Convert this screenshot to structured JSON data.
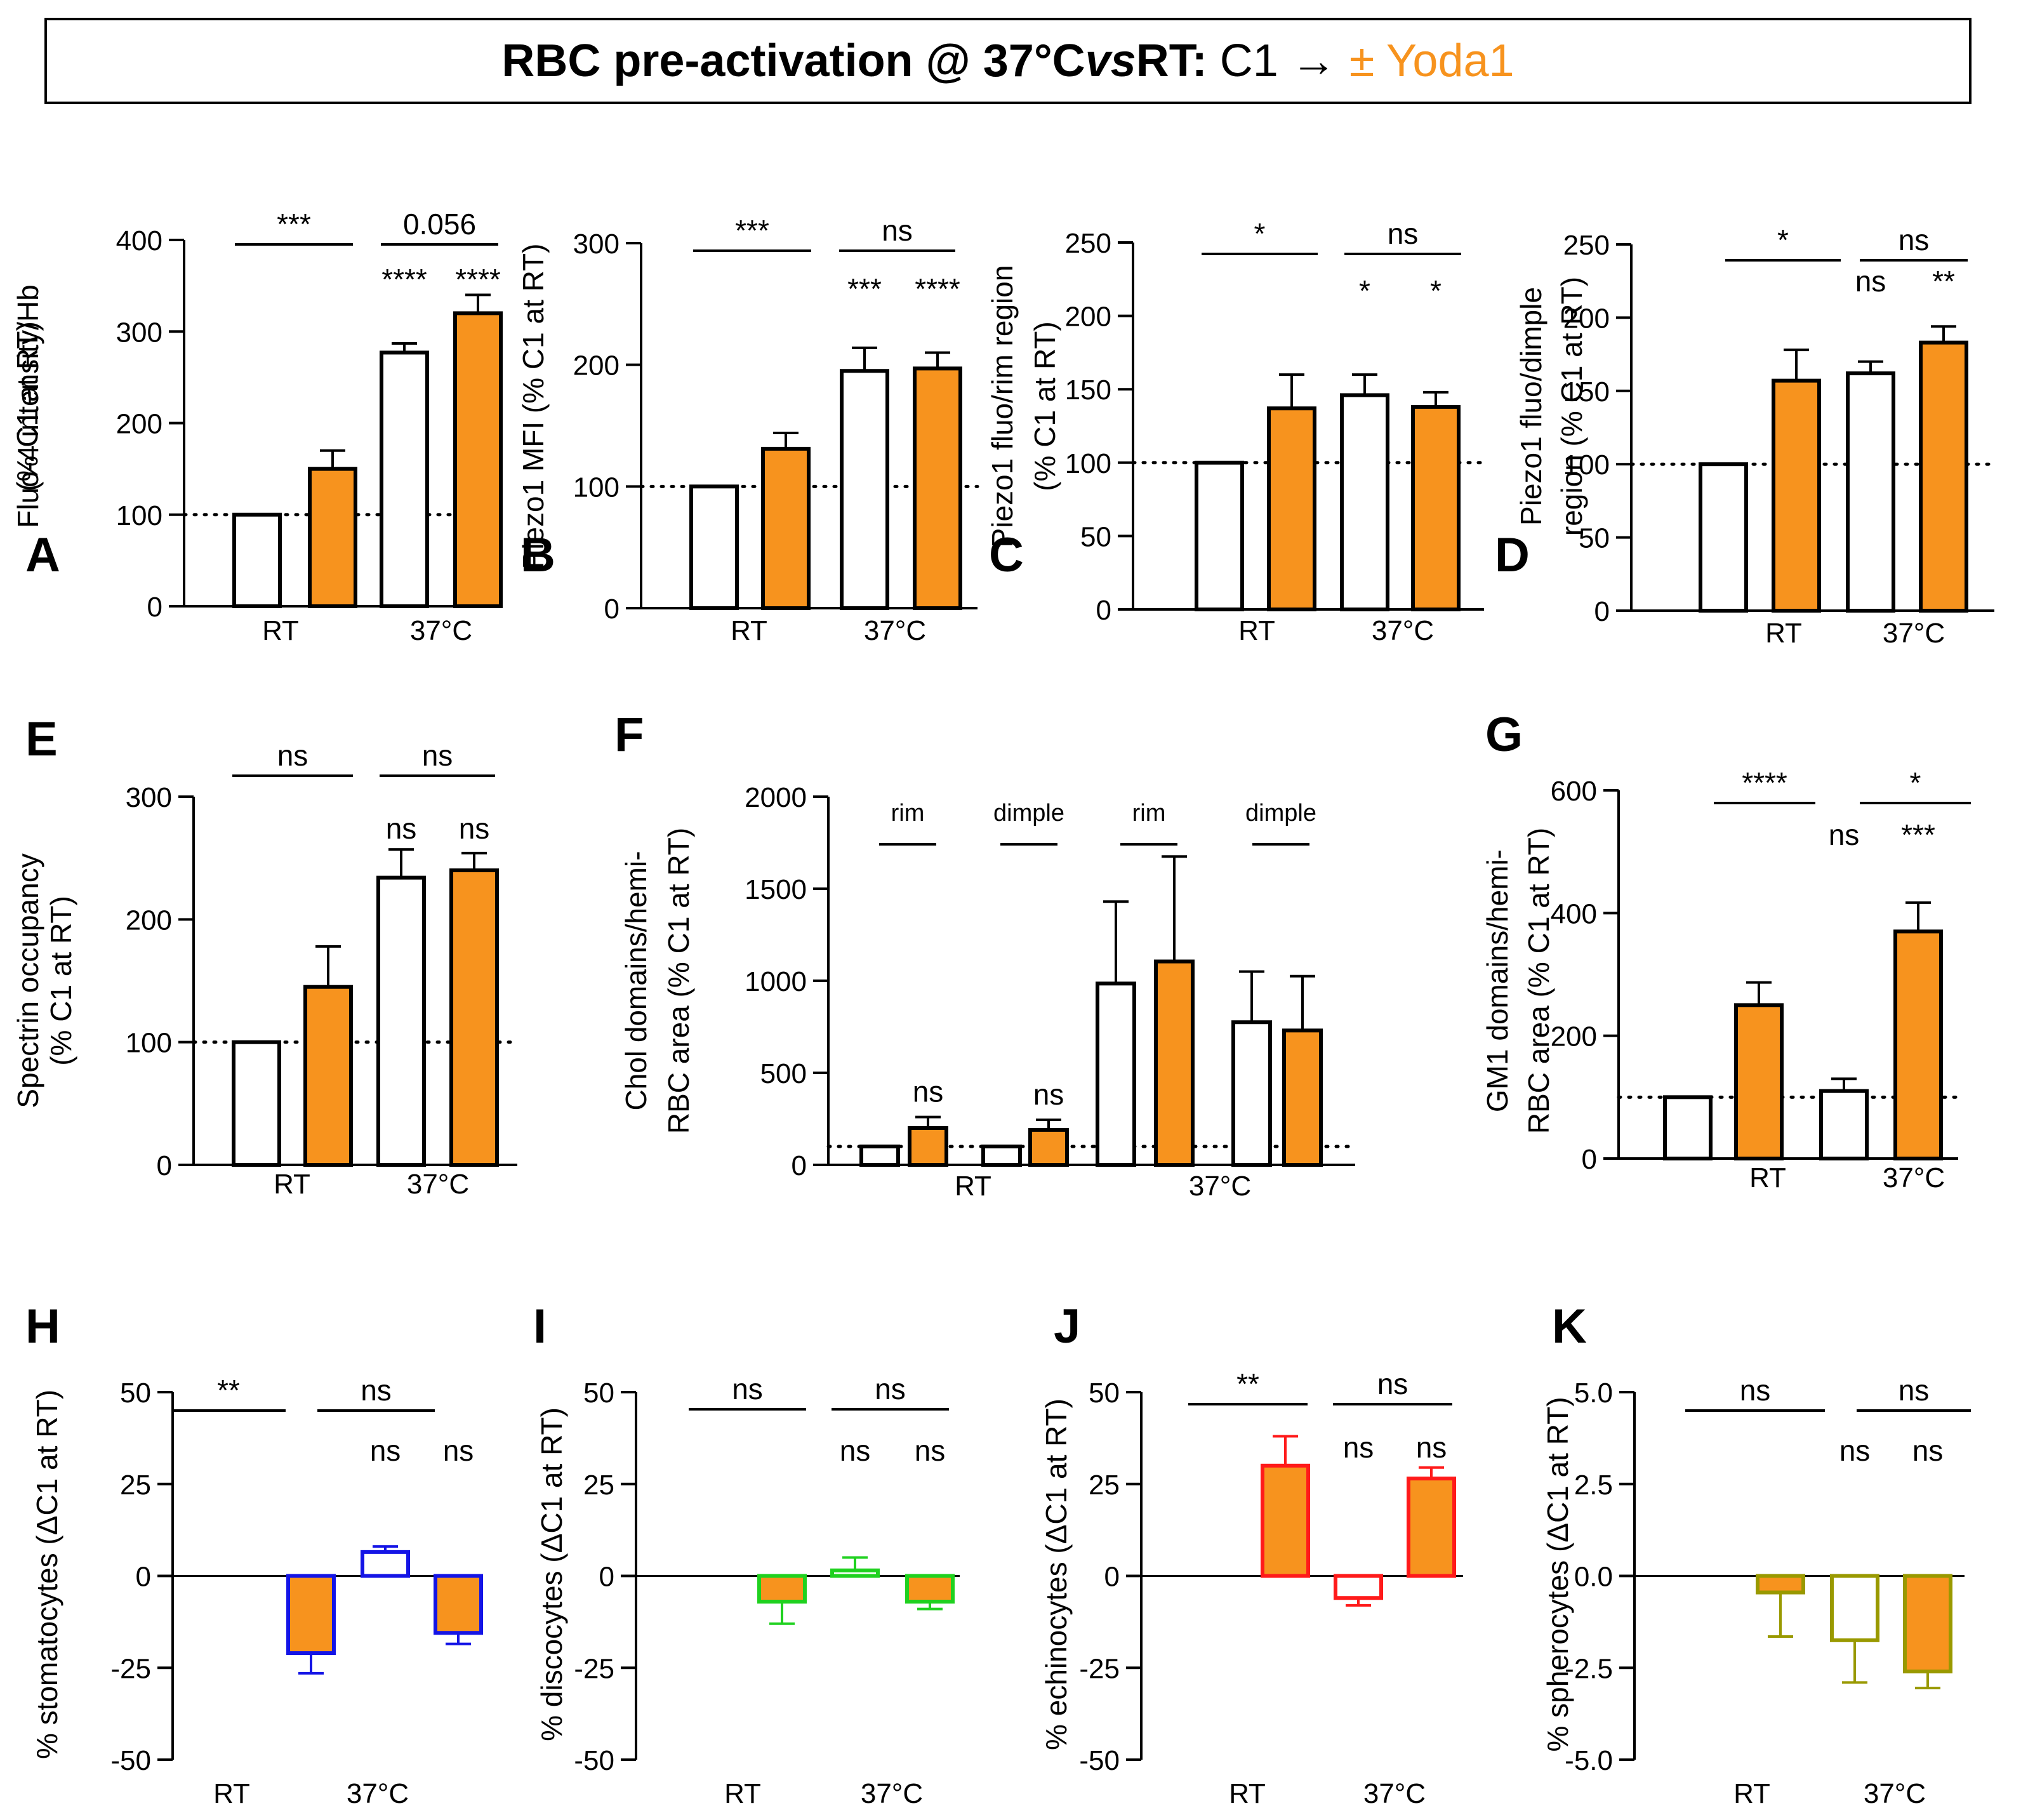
{
  "figure_title": {
    "bold_part1": "RBC pre-activation @ 37°C ",
    "italic_vs": "vs",
    "bold_part2": " RT:",
    "normal_part": " C1 → ",
    "highlight_part": "± Yoda1",
    "highlight_color": "#f7931e"
  },
  "colors": {
    "yoda_fill": "#f7931e",
    "control_fill": "#ffffff",
    "stomatocyte": "#1414e6",
    "discocyte": "#1fd11f",
    "echinocyte": "#ff1a1a",
    "spherocyte": "#999900"
  },
  "chart_data": [
    {
      "panel": "A",
      "type": "bar",
      "ylabel": [
        "Fluo-4 intensity/Hb",
        "(% C1 at RT)"
      ],
      "ylim": [
        0,
        400
      ],
      "yticks": [
        "0",
        "100",
        "200",
        "300",
        "400"
      ],
      "categories": [
        "RT",
        "37°C"
      ],
      "reference": 100,
      "bars": [
        {
          "group": "RT",
          "condition": "C1",
          "value": 100,
          "err": 0
        },
        {
          "group": "RT",
          "condition": "C1 + Yoda1",
          "value": 150,
          "err": 20
        },
        {
          "group": "37°C",
          "condition": "C1",
          "value": 277,
          "err": 10
        },
        {
          "group": "37°C",
          "condition": "C1 + Yoda1",
          "value": 320,
          "err": 20
        }
      ],
      "bar_sig": [
        "",
        "",
        "****",
        "****"
      ],
      "brackets": [
        "***",
        "0.056"
      ]
    },
    {
      "panel": "B",
      "type": "bar",
      "ylabel": [
        "Piezo1 MFI (% C1 at RT)"
      ],
      "ylim": [
        0,
        300
      ],
      "yticks": [
        "0",
        "100",
        "200",
        "300"
      ],
      "categories": [
        "RT",
        "37°C"
      ],
      "reference": 100,
      "bars": [
        {
          "group": "RT",
          "condition": "C1",
          "value": 100,
          "err": 0
        },
        {
          "group": "RT",
          "condition": "C1 + Yoda1",
          "value": 131,
          "err": 13
        },
        {
          "group": "37°C",
          "condition": "C1",
          "value": 195,
          "err": 19
        },
        {
          "group": "37°C",
          "condition": "C1 + Yoda1",
          "value": 197,
          "err": 13
        }
      ],
      "bar_sig": [
        "",
        "",
        "***",
        "****"
      ],
      "brackets": [
        "***",
        "ns"
      ]
    },
    {
      "panel": "C",
      "type": "bar",
      "ylabel": [
        "Piezo1 fluo/rim region",
        "(% C1 at RT)"
      ],
      "ylim": [
        0,
        250
      ],
      "yticks": [
        "0",
        "50",
        "100",
        "150",
        "200",
        "250"
      ],
      "categories": [
        "RT",
        "37°C"
      ],
      "reference": 100,
      "bars": [
        {
          "group": "RT",
          "condition": "C1",
          "value": 100,
          "err": 0
        },
        {
          "group": "RT",
          "condition": "C1 + Yoda1",
          "value": 137,
          "err": 23
        },
        {
          "group": "37°C",
          "condition": "C1",
          "value": 146,
          "err": 14
        },
        {
          "group": "37°C",
          "condition": "C1 + Yoda1",
          "value": 138,
          "err": 10
        }
      ],
      "bar_sig": [
        "",
        "",
        "*",
        "*"
      ],
      "brackets": [
        "*",
        "ns"
      ]
    },
    {
      "panel": "D",
      "type": "bar",
      "ylabel": [
        "Piezo1 fluo/dimple",
        "region (% C1 at RT)"
      ],
      "ylim": [
        0,
        250
      ],
      "yticks": [
        "0",
        "50",
        "100",
        "150",
        "200",
        "250"
      ],
      "categories": [
        "RT",
        "37°C"
      ],
      "reference": 100,
      "bars": [
        {
          "group": "RT",
          "condition": "C1",
          "value": 100,
          "err": 0
        },
        {
          "group": "RT",
          "condition": "C1 + Yoda1",
          "value": 157,
          "err": 21
        },
        {
          "group": "37°C",
          "condition": "C1",
          "value": 162,
          "err": 8
        },
        {
          "group": "37°C",
          "condition": "C1 + Yoda1",
          "value": 183,
          "err": 11
        }
      ],
      "bar_sig": [
        "",
        "",
        "ns",
        "**"
      ],
      "brackets": [
        "*",
        "ns"
      ]
    },
    {
      "panel": "E",
      "type": "bar",
      "ylabel": [
        "Spectrin occupancy",
        "(% C1 at RT)"
      ],
      "ylim": [
        0,
        300
      ],
      "yticks": [
        "0",
        "100",
        "200",
        "300"
      ],
      "categories": [
        "RT",
        "37°C"
      ],
      "reference": 100,
      "bars": [
        {
          "group": "RT",
          "condition": "C1",
          "value": 100,
          "err": 0
        },
        {
          "group": "RT",
          "condition": "C1 + Yoda1",
          "value": 145,
          "err": 33
        },
        {
          "group": "37°C",
          "condition": "C1",
          "value": 234,
          "err": 23
        },
        {
          "group": "37°C",
          "condition": "C1 + Yoda1",
          "value": 240,
          "err": 14
        }
      ],
      "bar_sig": [
        "",
        "",
        "ns",
        "ns"
      ],
      "brackets": [
        "ns",
        "ns"
      ]
    },
    {
      "panel": "F",
      "type": "bar",
      "ylabel": [
        "Chol domains/hemi-",
        "RBC area (% C1 at RT)"
      ],
      "ylim": [
        0,
        2000
      ],
      "yticks": [
        "0",
        "500",
        "1000",
        "1500",
        "2000"
      ],
      "categories": [
        "RT",
        "37°C"
      ],
      "reference": 100,
      "bars": [
        {
          "group": "RT",
          "region": "rim",
          "condition": "C1",
          "value": 100,
          "err": 0
        },
        {
          "group": "RT",
          "region": "rim",
          "condition": "C1 + Yoda1",
          "value": 200,
          "err": 60
        },
        {
          "group": "RT",
          "region": "dimple",
          "condition": "C1",
          "value": 100,
          "err": 0
        },
        {
          "group": "RT",
          "region": "dimple",
          "condition": "C1 + Yoda1",
          "value": 190,
          "err": 55
        },
        {
          "group": "37°C",
          "region": "rim",
          "condition": "C1",
          "value": 985,
          "err": 445
        },
        {
          "group": "37°C",
          "region": "rim",
          "condition": "C1 + Yoda1",
          "value": 1105,
          "err": 570
        },
        {
          "group": "37°C",
          "region": "dimple",
          "condition": "C1",
          "value": 775,
          "err": 275
        },
        {
          "group": "37°C",
          "region": "dimple",
          "condition": "C1 + Yoda1",
          "value": 730,
          "err": 295
        }
      ],
      "bar_sig": [
        "",
        "ns",
        "",
        "ns",
        "",
        "",
        "",
        ""
      ],
      "pair_labels": [
        "rim",
        "dimple",
        "rim",
        "dimple"
      ]
    },
    {
      "panel": "G",
      "type": "bar",
      "ylabel": [
        "GM1 domains/hemi-",
        "RBC area (% C1 at RT)"
      ],
      "ylim": [
        0,
        600
      ],
      "yticks": [
        "0",
        "200",
        "400",
        "600"
      ],
      "categories": [
        "RT",
        "37°C"
      ],
      "reference": 100,
      "bars": [
        {
          "group": "RT",
          "condition": "C1",
          "value": 100,
          "err": 0
        },
        {
          "group": "RT",
          "condition": "C1 + Yoda1",
          "value": 250,
          "err": 37
        },
        {
          "group": "37°C",
          "condition": "C1",
          "value": 110,
          "err": 20
        },
        {
          "group": "37°C",
          "condition": "C1 + Yoda1",
          "value": 370,
          "err": 47
        }
      ],
      "bar_sig": [
        "",
        "",
        "ns",
        "***"
      ],
      "brackets": [
        "****",
        "*"
      ]
    },
    {
      "panel": "H",
      "type": "bar",
      "ylabel": [
        "% stomatocytes (ΔC1 at RT)"
      ],
      "ylim": [
        -50,
        50
      ],
      "yticks": [
        "-50",
        "-25",
        "0",
        "25",
        "50"
      ],
      "categories": [
        "RT",
        "37°C"
      ],
      "bars": [
        {
          "group": "RT",
          "condition": "C1",
          "value": 0,
          "err": 0
        },
        {
          "group": "RT",
          "condition": "C1 + Yoda1",
          "value": -21,
          "err": 5.5
        },
        {
          "group": "37°C",
          "condition": "C1",
          "value": 6.5,
          "err": 1.5
        },
        {
          "group": "37°C",
          "condition": "C1 + Yoda1",
          "value": -15.5,
          "err": 3
        }
      ],
      "bar_sig": [
        "",
        "",
        "ns",
        "ns"
      ],
      "brackets": [
        "**",
        "ns"
      ]
    },
    {
      "panel": "I",
      "type": "bar",
      "ylabel": [
        "% discocytes (ΔC1 at RT)"
      ],
      "ylim": [
        -50,
        50
      ],
      "yticks": [
        "-50",
        "-25",
        "0",
        "25",
        "50"
      ],
      "categories": [
        "RT",
        "37°C"
      ],
      "bars": [
        {
          "group": "RT",
          "condition": "C1",
          "value": 0,
          "err": 0
        },
        {
          "group": "RT",
          "condition": "C1 + Yoda1",
          "value": -7,
          "err": 6
        },
        {
          "group": "37°C",
          "condition": "C1",
          "value": 1.5,
          "err": 3.5
        },
        {
          "group": "37°C",
          "condition": "C1 + Yoda1",
          "value": -7,
          "err": 2
        }
      ],
      "bar_sig": [
        "",
        "",
        "ns",
        "ns"
      ],
      "brackets": [
        "ns",
        "ns"
      ]
    },
    {
      "panel": "J",
      "type": "bar",
      "ylabel": [
        "% echinocytes (ΔC1 at RT)"
      ],
      "ylim": [
        -50,
        50
      ],
      "yticks": [
        "-50",
        "-25",
        "0",
        "25",
        "50"
      ],
      "categories": [
        "RT",
        "37°C"
      ],
      "bars": [
        {
          "group": "RT",
          "condition": "C1",
          "value": 0,
          "err": 0
        },
        {
          "group": "RT",
          "condition": "C1 + Yoda1",
          "value": 30,
          "err": 8
        },
        {
          "group": "37°C",
          "condition": "C1",
          "value": -6,
          "err": 2
        },
        {
          "group": "37°C",
          "condition": "C1 + Yoda1",
          "value": 26.5,
          "err": 3
        }
      ],
      "bar_sig": [
        "",
        "",
        "ns",
        "ns"
      ],
      "brackets": [
        "**",
        "ns"
      ]
    },
    {
      "panel": "K",
      "type": "bar",
      "ylabel": [
        "% spherocytes (ΔC1 at RT)"
      ],
      "ylim": [
        -5,
        5
      ],
      "yticks": [
        "-5.0",
        "-2.5",
        "0.0",
        "2.5",
        "5.0"
      ],
      "categories": [
        "RT",
        "37°C"
      ],
      "bars": [
        {
          "group": "RT",
          "condition": "C1",
          "value": 0,
          "err": 0
        },
        {
          "group": "RT",
          "condition": "C1 + Yoda1",
          "value": -0.45,
          "err": 1.2
        },
        {
          "group": "37°C",
          "condition": "C1",
          "value": -1.75,
          "err": 1.15
        },
        {
          "group": "37°C",
          "condition": "C1 + Yoda1",
          "value": -2.6,
          "err": 0.45
        }
      ],
      "bar_sig": [
        "",
        "",
        "ns",
        "ns"
      ],
      "brackets": [
        "ns",
        "ns"
      ]
    }
  ]
}
